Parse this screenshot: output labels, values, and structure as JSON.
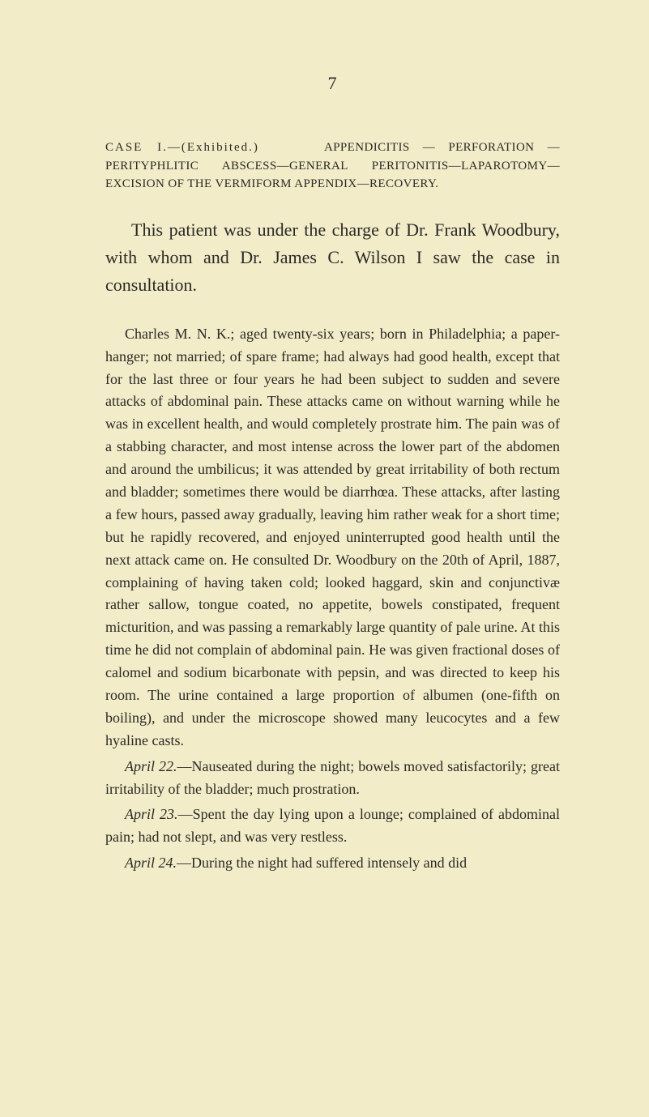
{
  "page_number": "7",
  "case_heading_prefix": "CASE I.—(Exhibited.)",
  "case_heading_body": "APPENDICITIS — PERFORATION — PERITYPHLITIC ABSCESS—GENERAL PERITONITIS—LAPAROTOMY—EXCISION OF THE VERMIFORM APPENDIX—RECOVERY.",
  "intro": "This patient was under the charge of Dr. Frank Woodbury, with whom and Dr. James C. Wilson I saw the case in consultation.",
  "para1": "Charles M. N. K.; aged twenty-six years; born in Philadelphia; a paper-hanger; not married; of spare frame; had always had good health, except that for the last three or four years he had been subject to sudden and severe attacks of abdominal pain. These attacks came on without warning while he was in excellent health, and would completely prostrate him. The pain was of a stabbing character, and most intense across the lower part of the abdomen and around the umbilicus; it was attended by great irritability of both rectum and bladder; sometimes there would be diarrhœa. These attacks, after lasting a few hours, passed away gradually, leaving him rather weak for a short time; but he rapidly recovered, and enjoyed uninterrupted good health until the next attack came on. He consulted Dr. Woodbury on the 20th of April, 1887, complaining of having taken cold; looked haggard, skin and conjunctivæ rather sallow, tongue coated, no appetite, bowels constipated, frequent micturition, and was passing a remarkably large quantity of pale urine. At this time he did not complain of abdominal pain. He was given fractional doses of calomel and sodium bicarbonate with pepsin, and was directed to keep his room. The urine contained a large proportion of albumen (one-fifth on boiling), and under the microscope showed many leucocytes and a few hyaline casts.",
  "para2_date": "April 22.",
  "para2_body": "—Nauseated during the night; bowels moved satisfactorily; great irritability of the bladder; much prostration.",
  "para3_date": "April 23.",
  "para3_body": "—Spent the day lying upon a lounge; complained of abdominal pain; had not slept, and was very restless.",
  "para4_date": "April 24.",
  "para4_body": "—During the night had suffered intensely and did",
  "colors": {
    "background": "#f3ecc8",
    "text": "#2a2a26"
  },
  "typography": {
    "page_number_fontsize": 22,
    "heading_fontsize": 15,
    "intro_fontsize": 22,
    "body_fontsize": 18,
    "line_height": 1.55,
    "font_family": "Georgia, Times New Roman, serif",
    "text_indent": 24
  }
}
